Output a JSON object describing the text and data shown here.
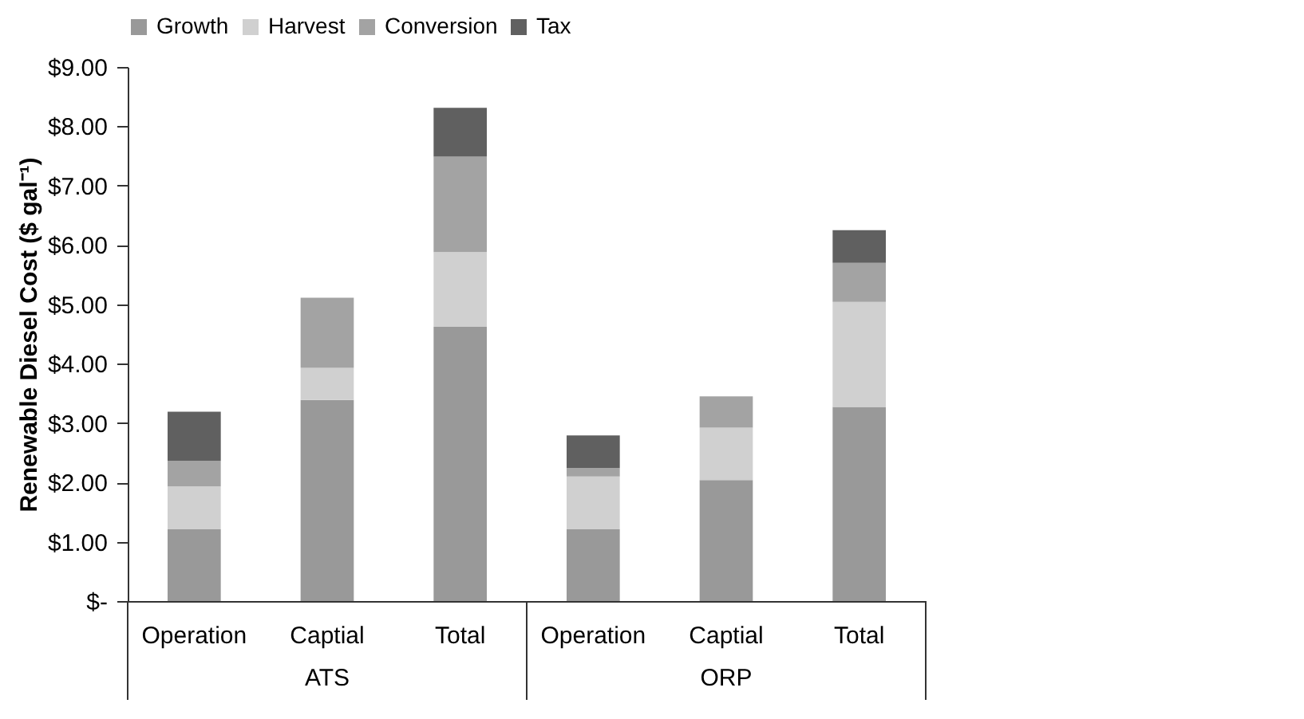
{
  "chart_data": {
    "type": "bar",
    "stacked": true,
    "ylabel": "Renewable Diesel Cost ($ gal⁻¹)",
    "categories": [
      "Operation",
      "Captial",
      "Total",
      "Operation",
      "Captial",
      "Total"
    ],
    "annotations": [
      "ATS",
      "ORP"
    ],
    "series": [
      {
        "name": "Growth",
        "color": "#999999",
        "values": [
          1.21,
          3.39,
          4.62,
          1.21,
          2.04,
          3.27
        ]
      },
      {
        "name": "Harvest",
        "color": "#d0d0d0",
        "values": [
          0.72,
          0.54,
          1.26,
          0.89,
          0.88,
          1.77
        ]
      },
      {
        "name": "Conversion",
        "color": "#a3a3a3",
        "values": [
          0.43,
          1.18,
          1.61,
          0.14,
          0.53,
          0.66
        ]
      },
      {
        "name": "Tax",
        "color": "#606060",
        "values": [
          0.83,
          0,
          0.82,
          0.55,
          0,
          0.55
        ]
      }
    ],
    "ylim": [
      0,
      9
    ],
    "yticks": [
      {
        "value": 0,
        "label": "$-"
      },
      {
        "value": 1,
        "label": "$1.00"
      },
      {
        "value": 2,
        "label": "$2.00"
      },
      {
        "value": 3,
        "label": "$3.00"
      },
      {
        "value": 4,
        "label": "$4.00"
      },
      {
        "value": 5,
        "label": "$5.00"
      },
      {
        "value": 6,
        "label": "$6.00"
      },
      {
        "value": 7,
        "label": "$7.00"
      },
      {
        "value": 8,
        "label": "$8.00"
      },
      {
        "value": 9,
        "label": "$9.00"
      }
    ],
    "grid": false,
    "legend": "top"
  }
}
